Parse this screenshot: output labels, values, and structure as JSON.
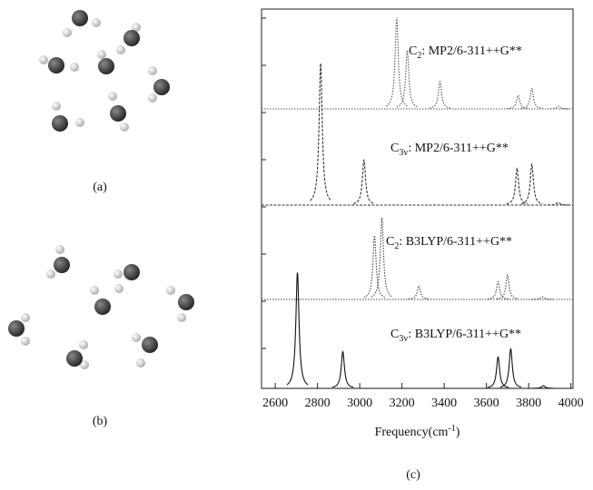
{
  "panel_labels": [
    "(a)",
    "(b)",
    "(c)"
  ],
  "chart_data": {
    "type": "spectrum",
    "x_label": {
      "main": "Frequency(cm",
      "sup": "-1",
      "tail": ")"
    },
    "xlim": [
      2535,
      4010
    ],
    "xticks": [
      2600,
      2800,
      3000,
      3200,
      3400,
      3600,
      3800,
      4000
    ],
    "series": [
      {
        "name": {
          "main": "C",
          "sub": "2",
          "rest": ": MP2/6-311++G**"
        },
        "color": "#555555",
        "dash": "1.5 1.5",
        "x": [
          3175,
          3225,
          3380,
          3750,
          3815,
          3940
        ],
        "values": [
          0.67,
          0.43,
          0.2,
          0.1,
          0.15,
          0.02
        ]
      },
      {
        "name": {
          "main": "C",
          "sub": "3v",
          "rest": ": MP2/6-311++G**"
        },
        "color": "#333333",
        "dash": "3 1.5",
        "x": [
          2815,
          3020,
          3745,
          3815,
          3940
        ],
        "values": [
          1.04,
          0.33,
          0.27,
          0.3,
          0.02
        ]
      },
      {
        "name": {
          "main": "C",
          "sub": "2",
          "rest": ": B3LYP/6-311++G**"
        },
        "color": "#444444",
        "dash": "1.5 1.5",
        "x": [
          3070,
          3105,
          3280,
          3655,
          3700,
          3865
        ],
        "values": [
          0.47,
          0.6,
          0.1,
          0.13,
          0.18,
          0.02
        ]
      },
      {
        "name": {
          "main": "C",
          "sub": "3v",
          "rest": ": B3LYP/6-311++G**"
        },
        "color": "#111111",
        "dash": "none",
        "x": [
          2705,
          2920,
          3655,
          3715,
          3870
        ],
        "values": [
          0.85,
          0.27,
          0.23,
          0.29,
          0.02
        ]
      }
    ]
  }
}
